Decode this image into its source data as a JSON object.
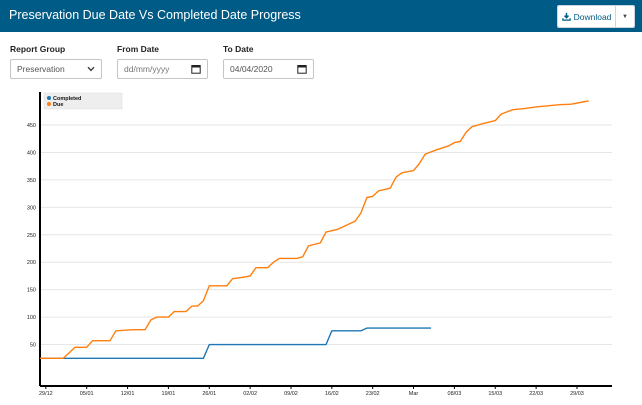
{
  "header": {
    "title": "Preservation Due Date Vs Completed Date Progress",
    "download_label": "Download",
    "download_icon": "download-icon",
    "caret_icon": "caret-down-icon",
    "background": "#005b86"
  },
  "filters": {
    "report_group": {
      "label": "Report Group",
      "value": "Preservation"
    },
    "from_date": {
      "label": "From Date",
      "placeholder": "dd/mm/yyyy"
    },
    "to_date": {
      "label": "To Date",
      "value": "04/04/2020"
    }
  },
  "chart_data": {
    "type": "line",
    "legend": {
      "placement": "top-left",
      "entries": [
        "Completed",
        "Due"
      ]
    },
    "grid": true,
    "ylim": [
      0,
      500
    ],
    "yticks": [
      50,
      100,
      150,
      200,
      250,
      300,
      350,
      400,
      450
    ],
    "xlim": [
      "2019-12-28",
      "2020-04-04"
    ],
    "xticks": [
      {
        "date": "2019-12-29",
        "label": "29/12"
      },
      {
        "date": "2020-01-05",
        "label": "05/01"
      },
      {
        "date": "2020-01-12",
        "label": "12/01"
      },
      {
        "date": "2020-01-19",
        "label": "19/01"
      },
      {
        "date": "2020-01-26",
        "label": "26/01"
      },
      {
        "date": "2020-02-02",
        "label": "02/02"
      },
      {
        "date": "2020-02-09",
        "label": "09/02"
      },
      {
        "date": "2020-02-16",
        "label": "16/02"
      },
      {
        "date": "2020-02-23",
        "label": "23/02"
      },
      {
        "date": "2020-03-01",
        "label": "Mar"
      },
      {
        "date": "2020-03-08",
        "label": "08/03"
      },
      {
        "date": "2020-03-15",
        "label": "15/03"
      },
      {
        "date": "2020-03-22",
        "label": "22/03"
      },
      {
        "date": "2020-03-29",
        "label": "29/03"
      }
    ],
    "series": [
      {
        "name": "Completed",
        "color": "#1f77b4",
        "points": [
          [
            "2019-12-28",
            25
          ],
          [
            "2020-01-25",
            25
          ],
          [
            "2020-01-26",
            50
          ],
          [
            "2020-02-15",
            50
          ],
          [
            "2020-02-16",
            75
          ],
          [
            "2020-02-21",
            75
          ],
          [
            "2020-02-22",
            80
          ],
          [
            "2020-03-04",
            80
          ]
        ]
      },
      {
        "name": "Due",
        "color": "#ff7f0e",
        "points": [
          [
            "2019-12-28",
            25
          ],
          [
            "2020-01-01",
            25
          ],
          [
            "2020-01-02",
            35
          ],
          [
            "2020-01-03",
            45
          ],
          [
            "2020-01-05",
            45
          ],
          [
            "2020-01-06",
            57
          ],
          [
            "2020-01-09",
            57
          ],
          [
            "2020-01-10",
            75
          ],
          [
            "2020-01-13",
            77
          ],
          [
            "2020-01-15",
            77
          ],
          [
            "2020-01-16",
            95
          ],
          [
            "2020-01-17",
            100
          ],
          [
            "2020-01-19",
            100
          ],
          [
            "2020-01-20",
            110
          ],
          [
            "2020-01-22",
            110
          ],
          [
            "2020-01-23",
            120
          ],
          [
            "2020-01-24",
            120
          ],
          [
            "2020-01-25",
            130
          ],
          [
            "2020-01-26",
            157
          ],
          [
            "2020-01-29",
            157
          ],
          [
            "2020-01-30",
            170
          ],
          [
            "2020-02-01",
            173
          ],
          [
            "2020-02-02",
            175
          ],
          [
            "2020-02-03",
            190
          ],
          [
            "2020-02-05",
            190
          ],
          [
            "2020-02-06",
            200
          ],
          [
            "2020-02-07",
            207
          ],
          [
            "2020-02-10",
            207
          ],
          [
            "2020-02-11",
            210
          ],
          [
            "2020-02-12",
            230
          ],
          [
            "2020-02-14",
            235
          ],
          [
            "2020-02-15",
            255
          ],
          [
            "2020-02-17",
            260
          ],
          [
            "2020-02-18",
            265
          ],
          [
            "2020-02-20",
            275
          ],
          [
            "2020-02-21",
            290
          ],
          [
            "2020-02-22",
            318
          ],
          [
            "2020-02-23",
            320
          ],
          [
            "2020-02-24",
            330
          ],
          [
            "2020-02-26",
            335
          ],
          [
            "2020-02-27",
            355
          ],
          [
            "2020-02-28",
            363
          ],
          [
            "2020-03-01",
            367
          ],
          [
            "2020-03-02",
            380
          ],
          [
            "2020-03-03",
            397
          ],
          [
            "2020-03-05",
            405
          ],
          [
            "2020-03-07",
            412
          ],
          [
            "2020-03-08",
            418
          ],
          [
            "2020-03-09",
            420
          ],
          [
            "2020-03-10",
            437
          ],
          [
            "2020-03-11",
            447
          ],
          [
            "2020-03-13",
            453
          ],
          [
            "2020-03-15",
            458
          ],
          [
            "2020-03-16",
            470
          ],
          [
            "2020-03-18",
            478
          ],
          [
            "2020-03-20",
            480
          ],
          [
            "2020-03-22",
            483
          ],
          [
            "2020-03-24",
            485
          ],
          [
            "2020-03-26",
            487
          ],
          [
            "2020-03-28",
            488
          ],
          [
            "2020-03-30",
            492
          ],
          [
            "2020-03-31",
            494
          ]
        ]
      }
    ]
  }
}
